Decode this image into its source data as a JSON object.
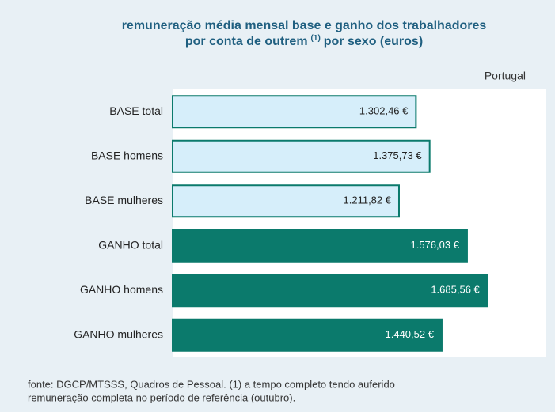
{
  "chart_data": {
    "type": "bar",
    "orientation": "horizontal",
    "title": {
      "line1": "remuneração média mensal base e ganho dos trabalhadores",
      "line2": "por conta de outrem",
      "note": "(1)",
      "line2_end": "por sexo (euros)"
    },
    "subtitle": "Portugal",
    "categories": [
      "BASE total",
      "BASE homens",
      "BASE mulheres",
      "GANHO total",
      "GANHO homens",
      "GANHO mulheres"
    ],
    "values": [
      1302.46,
      1375.73,
      1211.82,
      1576.03,
      1685.56,
      1440.52
    ],
    "value_labels": [
      "1.302,46 €",
      "1.375,73 €",
      "1.211,82 €",
      "1.576,03 €",
      "1.685,56 €",
      "1.440,52 €"
    ],
    "colors": [
      "#d6eefa",
      "#d6eefa",
      "#d6eefa",
      "#0b7a6c",
      "#0b7a6c",
      "#0b7a6c"
    ],
    "border_colors": [
      "#0b7a6c",
      "#0b7a6c",
      "#0b7a6c",
      "#0b7a6c",
      "#0b7a6c",
      "#0b7a6c"
    ],
    "label_colors": [
      "#222222",
      "#222222",
      "#222222",
      "#ffffff",
      "#ffffff",
      "#ffffff"
    ],
    "xlim": [
      0,
      2000
    ],
    "source": [
      "fonte: DGCP/MTSSS, Quadros de Pessoal.  (1) a tempo completo tendo auferido",
      "remuneração completa no período de referência (outubro)."
    ]
  }
}
